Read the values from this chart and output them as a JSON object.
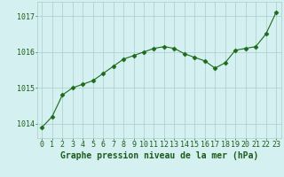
{
  "x": [
    0,
    1,
    2,
    3,
    4,
    5,
    6,
    7,
    8,
    9,
    10,
    11,
    12,
    13,
    14,
    15,
    16,
    17,
    18,
    19,
    20,
    21,
    22,
    23
  ],
  "y": [
    1013.9,
    1014.2,
    1014.8,
    1015.0,
    1015.1,
    1015.2,
    1015.4,
    1015.6,
    1015.8,
    1015.9,
    1016.0,
    1016.1,
    1016.15,
    1016.1,
    1015.95,
    1015.85,
    1015.75,
    1015.55,
    1015.7,
    1016.05,
    1016.1,
    1016.15,
    1016.5,
    1017.1
  ],
  "line_color": "#1a6b1a",
  "marker": "D",
  "marker_size": 2.5,
  "bg_color": "#d5f0f0",
  "grid_color": "#aacccc",
  "xlabel": "Graphe pression niveau de la mer (hPa)",
  "xlabel_color": "#1a5c1a",
  "xlabel_fontsize": 7.0,
  "tick_color": "#1a5c1a",
  "tick_fontsize": 6.0,
  "ylim": [
    1013.6,
    1017.4
  ],
  "yticks": [
    1014,
    1015,
    1016,
    1017
  ],
  "xlim": [
    -0.5,
    23.5
  ],
  "xticks": [
    0,
    1,
    2,
    3,
    4,
    5,
    6,
    7,
    8,
    9,
    10,
    11,
    12,
    13,
    14,
    15,
    16,
    17,
    18,
    19,
    20,
    21,
    22,
    23
  ]
}
